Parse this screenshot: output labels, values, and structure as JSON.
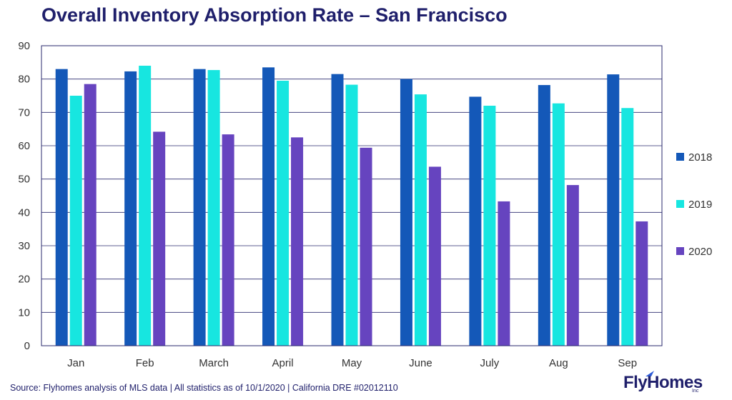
{
  "chart_data": {
    "type": "bar",
    "title": "Overall Inventory Absorption Rate – San Francisco",
    "categories": [
      "Jan",
      "Feb",
      "March",
      "April",
      "May",
      "June",
      "July",
      "Aug",
      "Sep"
    ],
    "series": [
      {
        "name": "2018",
        "color": "#1458b8",
        "values": [
          83.0,
          82.3,
          83.0,
          83.5,
          81.5,
          80.0,
          74.7,
          78.2,
          81.4
        ]
      },
      {
        "name": "2019",
        "color": "#17e6e0",
        "values": [
          75.0,
          84.0,
          82.7,
          79.5,
          78.3,
          75.4,
          72.0,
          72.7,
          71.3
        ]
      },
      {
        "name": "2020",
        "color": "#6644bf",
        "values": [
          78.5,
          64.2,
          63.4,
          62.5,
          59.4,
          53.7,
          43.3,
          48.2,
          37.3
        ]
      }
    ],
    "yticks": [
      0,
      10,
      20,
      30,
      40,
      50,
      60,
      70,
      80,
      90
    ],
    "ylim": [
      0,
      90
    ],
    "grid": true,
    "legend": "right"
  },
  "footer": {
    "source": "Source: Flyhomes analysis of MLS data | All statistics as of 10/1/2020 | California DRE #02012110"
  },
  "logo": {
    "text": "FlyHomes",
    "suffix": "Inc"
  }
}
